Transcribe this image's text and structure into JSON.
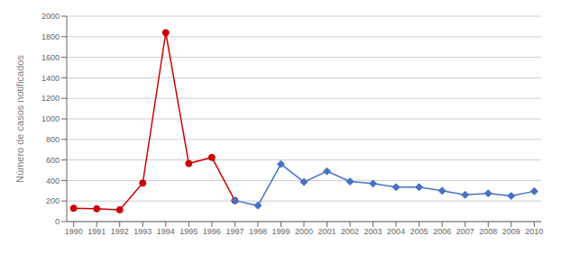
{
  "chart_data": {
    "type": "line",
    "x": [
      1990,
      1991,
      1992,
      1993,
      1994,
      1995,
      1996,
      1997,
      1998,
      1999,
      2000,
      2001,
      2002,
      2003,
      2004,
      2005,
      2006,
      2007,
      2008,
      2009,
      2010
    ],
    "series": [
      {
        "color": "#cc0000",
        "marker": "circle",
        "values": [
          130,
          125,
          115,
          375,
          1840,
          565,
          625,
          205,
          null,
          null,
          null,
          null,
          null,
          null,
          null,
          null,
          null,
          null,
          null,
          null,
          null
        ]
      },
      {
        "color": "#4472c4",
        "marker": "diamond",
        "values": [
          null,
          null,
          null,
          null,
          null,
          null,
          null,
          205,
          155,
          560,
          385,
          490,
          390,
          370,
          335,
          335,
          300,
          260,
          275,
          250,
          295
        ]
      }
    ],
    "ylabel": "Número de casos notificados",
    "xlim": [
      1989.7,
      2010.3
    ],
    "xticks": [
      1990,
      1991,
      1992,
      1993,
      1994,
      1995,
      1996,
      1997,
      1998,
      1999,
      2000,
      2001,
      2002,
      2003,
      2004,
      2005,
      2006,
      2007,
      2008,
      2009,
      2010
    ],
    "ylim": [
      0,
      2000
    ],
    "yticks": [
      0,
      200,
      400,
      600,
      800,
      1000,
      1200,
      1400,
      1600,
      1800,
      2000
    ],
    "grid": true
  }
}
